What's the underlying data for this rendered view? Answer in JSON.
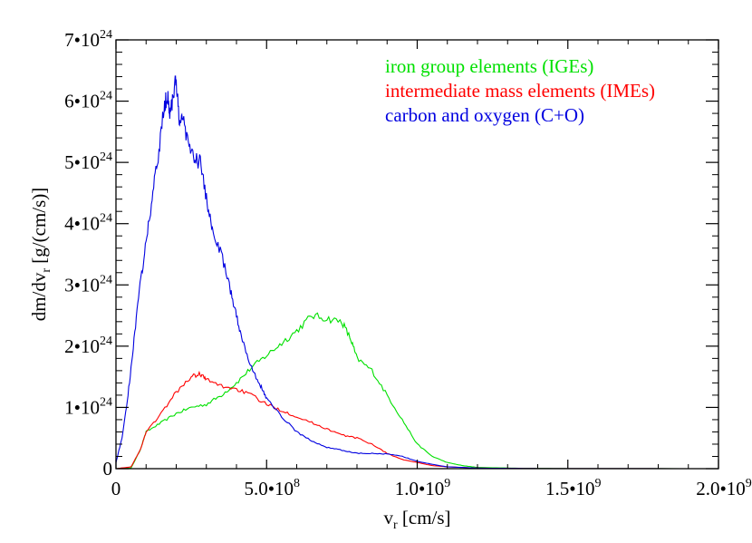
{
  "chart_data": {
    "type": "line",
    "xlabel": {
      "base": "v",
      "sub": "r",
      "rest": " [cm/s]"
    },
    "ylabel": {
      "base": "dm/dv",
      "sub": "r",
      "rest": " [g/(cm/s)]"
    },
    "xlim": [
      0,
      2000000000
    ],
    "ylim": [
      0,
      7e+24
    ],
    "x_ticks": [
      {
        "value": 0,
        "label": "0",
        "exp": ""
      },
      {
        "value": 500000000,
        "label": "5.0•10",
        "exp": "8"
      },
      {
        "value": 1000000000,
        "label": "1.0•10",
        "exp": "9"
      },
      {
        "value": 1500000000,
        "label": "1.5•10",
        "exp": "9"
      },
      {
        "value": 2000000000,
        "label": "2.0•10",
        "exp": "9"
      }
    ],
    "y_ticks": [
      {
        "value": 0,
        "label": "0",
        "exp": ""
      },
      {
        "value": 1e+24,
        "label": "1•10",
        "exp": "24"
      },
      {
        "value": 2e+24,
        "label": "2•10",
        "exp": "24"
      },
      {
        "value": 3e+24,
        "label": "3•10",
        "exp": "24"
      },
      {
        "value": 4e+24,
        "label": "4•10",
        "exp": "24"
      },
      {
        "value": 5e+24,
        "label": "5•10",
        "exp": "24"
      },
      {
        "value": 6e+24,
        "label": "6•10",
        "exp": "24"
      },
      {
        "value": 7e+24,
        "label": "7•10",
        "exp": "24"
      }
    ],
    "legend_placement": "top-right",
    "grid": false,
    "series": [
      {
        "name": "iron group elements  (IGEs)",
        "color": "#00e000",
        "x": [
          0,
          50000000,
          80000000,
          100000000,
          150000000,
          200000000,
          250000000,
          300000000,
          350000000,
          400000000,
          450000000,
          500000000,
          550000000,
          600000000,
          650000000,
          700000000,
          750000000,
          780000000,
          800000000,
          850000000,
          900000000,
          950000000,
          1000000000,
          1050000000,
          1100000000,
          1150000000,
          1200000000,
          1300000000,
          1400000000,
          1500000000,
          2000000000
        ],
        "y": [
          0,
          1e+22,
          3e+23,
          6e+23,
          7.5e+23,
          9e+23,
          1e+24,
          1.05e+24,
          1.2e+24,
          1.4e+24,
          1.65e+24,
          1.85e+24,
          2.05e+24,
          2.25e+24,
          2.5e+24,
          2.45e+24,
          2.4e+24,
          2.1e+24,
          1.8e+24,
          1.6e+24,
          1.2e+24,
          8e+23,
          4e+23,
          2e+23,
          1e+23,
          5e+22,
          2e+22,
          1e+22,
          5e+21,
          2e+21,
          0
        ]
      },
      {
        "name": "intermediate mass elements  (IMEs)",
        "color": "#ff0000",
        "x": [
          0,
          50000000,
          80000000,
          100000000,
          150000000,
          200000000,
          250000000,
          280000000,
          300000000,
          350000000,
          400000000,
          450000000,
          500000000,
          550000000,
          600000000,
          650000000,
          700000000,
          750000000,
          800000000,
          850000000,
          900000000,
          950000000,
          1000000000,
          1050000000,
          1100000000,
          1200000000,
          1300000000,
          1400000000,
          2000000000
        ],
        "y": [
          0,
          3e+22,
          3e+23,
          6e+23,
          9e+23,
          1.25e+24,
          1.5e+24,
          1.55e+24,
          1.45e+24,
          1.35e+24,
          1.3e+24,
          1.2e+24,
          1.05e+24,
          9.5e+23,
          8.5e+23,
          7.5e+23,
          6.5e+23,
          5.5e+23,
          5e+23,
          4e+23,
          2.5e+23,
          1.5e+23,
          1e+23,
          5e+22,
          3e+22,
          1e+22,
          5e+21,
          2e+21,
          0
        ]
      },
      {
        "name": "carbon and oxygen  (C+O)",
        "color": "#0000e0",
        "x": [
          0,
          20000000,
          40000000,
          60000000,
          80000000,
          100000000,
          120000000,
          140000000,
          160000000,
          170000000,
          180000000,
          190000000,
          200000000,
          210000000,
          220000000,
          240000000,
          260000000,
          280000000,
          300000000,
          320000000,
          350000000,
          380000000,
          400000000,
          420000000,
          450000000,
          480000000,
          500000000,
          550000000,
          600000000,
          650000000,
          700000000,
          750000000,
          800000000,
          850000000,
          900000000,
          950000000,
          1000000000,
          1050000000,
          1100000000,
          1200000000,
          1300000000,
          1400000000,
          2000000000
        ],
        "y": [
          1e+23,
          5e+23,
          1.2e+24,
          2.1e+24,
          3e+24,
          3.7e+24,
          4.4e+24,
          5.1e+24,
          5.9e+24,
          6.1e+24,
          5.8e+24,
          6.1e+24,
          6.35e+24,
          5.6e+24,
          5.8e+24,
          5.3e+24,
          5.05e+24,
          5e+24,
          4.4e+24,
          3.9e+24,
          3.5e+24,
          2.9e+24,
          2.5e+24,
          2.1e+24,
          1.65e+24,
          1.35e+24,
          1.15e+24,
          8.5e+23,
          6e+23,
          4.5e+23,
          3.5e+23,
          3e+23,
          2.5e+23,
          2.5e+23,
          2.4e+23,
          2e+23,
          1.2e+23,
          7e+22,
          3e+22,
          1e+22,
          5e+21,
          2e+21,
          0
        ]
      }
    ]
  }
}
